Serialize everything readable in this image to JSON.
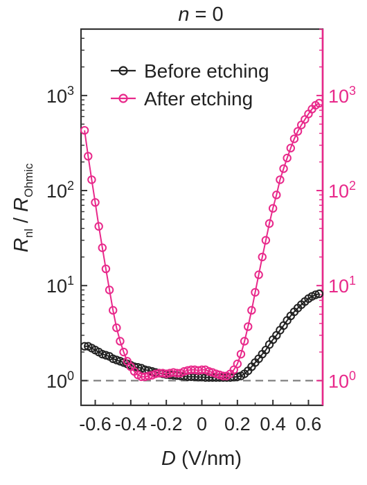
{
  "chart_data": {
    "type": "line",
    "title": {
      "var": "n",
      "rest": " = 0"
    },
    "xlabel": {
      "var": "D",
      "unit": " (V/nm)"
    },
    "ylabel": {
      "r1": "R",
      "sub1": "nl",
      "sep": " / ",
      "r2": "R",
      "sub2": "Ohmic"
    },
    "xlim": [
      -0.68,
      0.68
    ],
    "ylim": [
      0.55,
      5000
    ],
    "yscale": "log",
    "x_ticks": [
      {
        "value": -0.6,
        "label": "-0.6"
      },
      {
        "value": -0.4,
        "label": "-0.4"
      },
      {
        "value": -0.2,
        "label": "-0.2"
      },
      {
        "value": 0,
        "label": "0"
      },
      {
        "value": 0.2,
        "label": "0.2"
      },
      {
        "value": 0.4,
        "label": "0.4"
      },
      {
        "value": 0.6,
        "label": "0.6"
      }
    ],
    "y_ticks": [
      {
        "value": 1,
        "base": "10",
        "exp": "0"
      },
      {
        "value": 10,
        "base": "10",
        "exp": "1"
      },
      {
        "value": 100,
        "base": "10",
        "exp": "2"
      },
      {
        "value": 1000,
        "base": "10",
        "exp": "3"
      }
    ],
    "reference_line": {
      "y": 1,
      "style": "dashed",
      "color": "#808080"
    },
    "right_axis_color": "#e8288a",
    "grid": false,
    "legend_position": "top",
    "series": [
      {
        "name": "Before etching",
        "color": "#222222",
        "x": [
          -0.66,
          -0.64,
          -0.62,
          -0.6,
          -0.58,
          -0.56,
          -0.54,
          -0.52,
          -0.5,
          -0.48,
          -0.46,
          -0.44,
          -0.42,
          -0.4,
          -0.38,
          -0.36,
          -0.34,
          -0.32,
          -0.3,
          -0.28,
          -0.26,
          -0.24,
          -0.22,
          -0.2,
          -0.18,
          -0.16,
          -0.14,
          -0.12,
          -0.1,
          -0.08,
          -0.06,
          -0.04,
          -0.02,
          0.0,
          0.02,
          0.04,
          0.06,
          0.08,
          0.1,
          0.12,
          0.14,
          0.16,
          0.18,
          0.2,
          0.22,
          0.24,
          0.26,
          0.28,
          0.3,
          0.32,
          0.34,
          0.36,
          0.38,
          0.4,
          0.42,
          0.44,
          0.46,
          0.48,
          0.5,
          0.52,
          0.54,
          0.56,
          0.58,
          0.6,
          0.62,
          0.64,
          0.66
        ],
        "y": [
          2.3,
          2.3,
          2.2,
          2.1,
          2.0,
          1.9,
          1.85,
          1.8,
          1.7,
          1.65,
          1.6,
          1.55,
          1.5,
          1.45,
          1.4,
          1.38,
          1.35,
          1.3,
          1.28,
          1.25,
          1.22,
          1.2,
          1.18,
          1.16,
          1.15,
          1.14,
          1.13,
          1.12,
          1.11,
          1.1,
          1.1,
          1.1,
          1.09,
          1.09,
          1.08,
          1.08,
          1.08,
          1.08,
          1.08,
          1.08,
          1.08,
          1.08,
          1.09,
          1.1,
          1.12,
          1.18,
          1.27,
          1.4,
          1.55,
          1.7,
          1.9,
          2.1,
          2.4,
          2.7,
          3.0,
          3.4,
          3.8,
          4.3,
          4.8,
          5.3,
          5.8,
          6.3,
          6.8,
          7.3,
          7.7,
          8.0,
          8.2
        ]
      },
      {
        "name": "After etching",
        "color": "#e8288a",
        "x": [
          -0.66,
          -0.64,
          -0.62,
          -0.6,
          -0.58,
          -0.56,
          -0.54,
          -0.52,
          -0.5,
          -0.48,
          -0.46,
          -0.44,
          -0.42,
          -0.4,
          -0.38,
          -0.36,
          -0.34,
          -0.32,
          -0.3,
          -0.28,
          -0.26,
          -0.24,
          -0.22,
          -0.2,
          -0.18,
          -0.16,
          -0.14,
          -0.12,
          -0.1,
          -0.08,
          -0.06,
          -0.04,
          -0.02,
          0.0,
          0.02,
          0.04,
          0.06,
          0.08,
          0.1,
          0.12,
          0.14,
          0.16,
          0.18,
          0.2,
          0.22,
          0.24,
          0.26,
          0.28,
          0.3,
          0.32,
          0.34,
          0.36,
          0.38,
          0.4,
          0.42,
          0.44,
          0.46,
          0.48,
          0.5,
          0.52,
          0.54,
          0.56,
          0.58,
          0.6,
          0.62,
          0.64,
          0.66
        ],
        "y": [
          430,
          230,
          130,
          75,
          42,
          25,
          15,
          9,
          5.5,
          3.6,
          2.6,
          2.0,
          1.6,
          1.4,
          1.25,
          1.15,
          1.1,
          1.1,
          1.12,
          1.14,
          1.18,
          1.2,
          1.2,
          1.18,
          1.2,
          1.22,
          1.2,
          1.2,
          1.25,
          1.28,
          1.3,
          1.3,
          1.28,
          1.3,
          1.3,
          1.25,
          1.22,
          1.18,
          1.15,
          1.12,
          1.12,
          1.18,
          1.3,
          1.5,
          1.9,
          2.6,
          3.7,
          5.5,
          8.5,
          13,
          20,
          30,
          45,
          65,
          90,
          130,
          170,
          220,
          280,
          350,
          420,
          490,
          560,
          640,
          720,
          790,
          830
        ]
      }
    ]
  }
}
